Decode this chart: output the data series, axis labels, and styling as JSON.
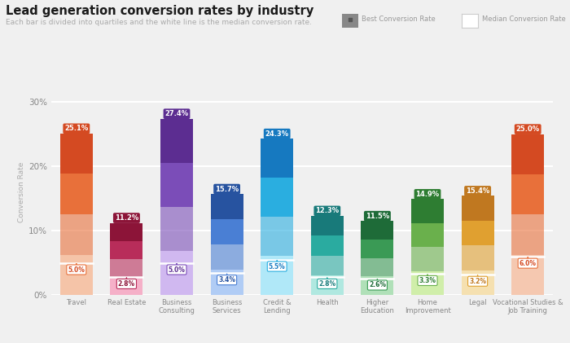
{
  "title": "Lead generation conversion rates by industry",
  "subtitle": "Each bar is divided into quartiles and the white line is the median conversion rate.",
  "categories": [
    "Travel",
    "Real Estate",
    "Business\nConsulting",
    "Business\nServices",
    "Credit &\nLending",
    "Health",
    "Higher\nEducation",
    "Home\nImprovement",
    "Legal",
    "Vocational Studies &\nJob Training"
  ],
  "best_rates": [
    25.1,
    11.2,
    27.4,
    15.7,
    24.3,
    12.3,
    11.5,
    14.9,
    15.4,
    25.0
  ],
  "median_rates": [
    5.0,
    2.8,
    5.0,
    3.4,
    5.5,
    2.8,
    2.6,
    3.3,
    3.2,
    6.0
  ],
  "bar_colors_dark": [
    "#d44a22",
    "#8c1438",
    "#5c2d91",
    "#2753a0",
    "#1679c0",
    "#187a7a",
    "#1e6b38",
    "#2e7d32",
    "#c07820",
    "#d44a22"
  ],
  "bar_colors_mid": [
    "#e8703a",
    "#b82d5a",
    "#7b4db8",
    "#4a7fd4",
    "#2aaee0",
    "#2aaba0",
    "#3a9a55",
    "#6ab04c",
    "#e0a030",
    "#e8703a"
  ],
  "bar_colors_light": [
    "#f5c4a8",
    "#f5b0c8",
    "#d0b8f0",
    "#b0ccf5",
    "#b0e8f8",
    "#b0e8e0",
    "#b0e0b8",
    "#d0eeaa",
    "#f5e0b0",
    "#f5c8b0"
  ],
  "label_bg_dark": [
    "#d44a22",
    "#8c1438",
    "#5c2d91",
    "#2753a0",
    "#1679c0",
    "#187a7a",
    "#1e6b38",
    "#2e7d32",
    "#c07820",
    "#d44a22"
  ],
  "median_label_border": [
    "#e8703a",
    "#b82d5a",
    "#7b4db8",
    "#4a7fd4",
    "#2aaee0",
    "#2aaba0",
    "#3a9a55",
    "#6ab04c",
    "#e0a030",
    "#e8703a"
  ],
  "ylabel": "Conversion Rate",
  "ylim": [
    0,
    32
  ],
  "yticks": [
    0,
    10,
    20,
    30
  ],
  "yticklabels": [
    "0%",
    "10%",
    "20%",
    "30%"
  ],
  "background_color": "#f0f0f0",
  "grid_color": "#ffffff",
  "bar_width": 0.65
}
